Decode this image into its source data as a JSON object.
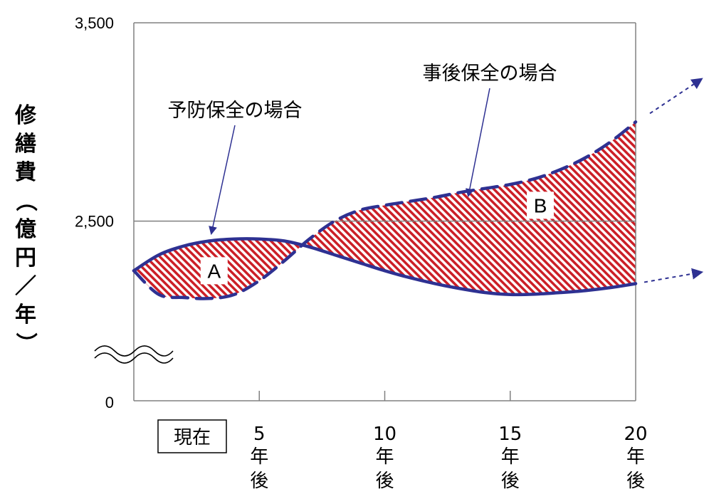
{
  "chart_data": {
    "type": "area",
    "ylabel_chars": [
      "修",
      "繕",
      "費",
      "（",
      "億",
      "円",
      "／",
      "年",
      "）"
    ],
    "y_ticks": [
      {
        "label": "0",
        "value": 0
      },
      {
        "label": "2,500",
        "value": 2500
      },
      {
        "label": "3,500",
        "value": 3500
      }
    ],
    "ylim": [
      0,
      3500
    ],
    "y_axis_break": true,
    "xlim": [
      0,
      20
    ],
    "x_categories": [
      {
        "x": 0,
        "label": "現在",
        "boxed": true
      },
      {
        "x": 5,
        "label": "5",
        "suffix": [
          "年",
          "後"
        ]
      },
      {
        "x": 10,
        "label": "10",
        "suffix": [
          "年",
          "後"
        ]
      },
      {
        "x": 15,
        "label": "15",
        "suffix": [
          "年",
          "後"
        ]
      },
      {
        "x": 20,
        "label": "20",
        "suffix": [
          "年",
          "後"
        ]
      }
    ],
    "grid": {
      "horizontal_at": [
        2500
      ],
      "vertical": false
    },
    "series": [
      {
        "name": "予防保全の場合",
        "style": "solid",
        "color": "#2e3192",
        "x": [
          0,
          1,
          2,
          3,
          4,
          5,
          6,
          7,
          8,
          9,
          10,
          11,
          12,
          13,
          14,
          15,
          16,
          17,
          18,
          19,
          20
        ],
        "y": [
          2250,
          2330,
          2375,
          2400,
          2410,
          2410,
          2400,
          2370,
          2330,
          2290,
          2250,
          2215,
          2185,
          2160,
          2140,
          2130,
          2132,
          2140,
          2150,
          2165,
          2185
        ]
      },
      {
        "name": "事後保全の場合",
        "style": "dashed",
        "color": "#2e3192",
        "x": [
          0,
          1,
          2,
          3,
          4,
          5,
          6,
          7,
          8,
          9,
          10,
          11,
          12,
          13,
          14,
          15,
          16,
          17,
          18,
          19,
          20
        ],
        "y": [
          2250,
          2130,
          2115,
          2110,
          2130,
          2200,
          2300,
          2410,
          2500,
          2555,
          2580,
          2600,
          2620,
          2645,
          2665,
          2685,
          2715,
          2760,
          2820,
          2900,
          3000
        ]
      }
    ],
    "regions": [
      {
        "label": "A",
        "x": 3.2,
        "y": 2250,
        "fill": "red-white diagonal stripes"
      },
      {
        "label": "B",
        "x": 16.2,
        "y": 2580,
        "fill": "red-white diagonal stripes"
      }
    ],
    "annotations": [
      {
        "text": "予防保全の場合",
        "target_series": 0
      },
      {
        "text": "事後保全の場合",
        "target_series": 1
      }
    ],
    "arrows_continue_right": true
  },
  "colors": {
    "line": "#2e3192",
    "stripe": "#cc1f27",
    "axis": "#808080",
    "text": "#000000"
  }
}
